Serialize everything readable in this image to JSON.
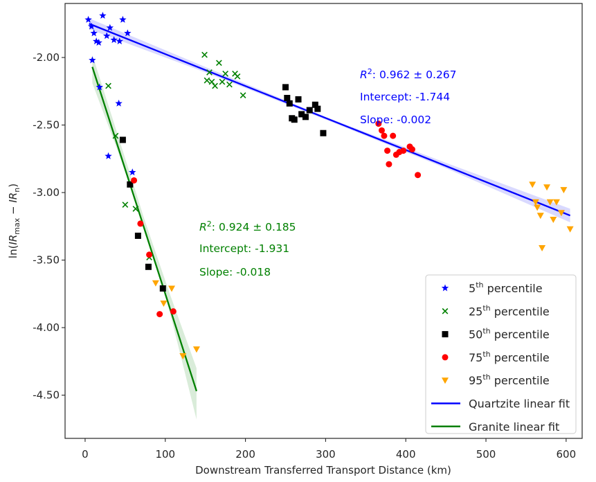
{
  "chart_data": {
    "type": "scatter",
    "xlabel": "Downstream Transferred Transport Distance (km)",
    "ylabel": "ln(IR_max − IR_n)",
    "xlim": [
      -25,
      620
    ],
    "ylim": [
      -4.82,
      -1.6
    ],
    "xticks": [
      0,
      100,
      200,
      300,
      400,
      500,
      600
    ],
    "xtick_labels": [
      "0",
      "100",
      "200",
      "300",
      "400",
      "500",
      "600"
    ],
    "yticks": [
      -2.0,
      -2.5,
      -3.0,
      -3.5,
      -4.0,
      -4.5
    ],
    "ytick_labels": [
      "-2.00",
      "-2.50",
      "-3.00",
      "-3.50",
      "-4.00",
      "-4.50"
    ],
    "grid": false,
    "legend_position": "lower right",
    "series": [
      {
        "name": "5th percentile",
        "marker": "star",
        "color": "#0000ff",
        "points": [
          [
            4,
            -1.72
          ],
          [
            8,
            -1.77
          ],
          [
            11,
            -1.82
          ],
          [
            14,
            -1.88
          ],
          [
            17,
            -1.89
          ],
          [
            22,
            -1.69
          ],
          [
            27,
            -1.84
          ],
          [
            31,
            -1.78
          ],
          [
            36,
            -1.87
          ],
          [
            43,
            -1.88
          ],
          [
            47,
            -1.72
          ],
          [
            53,
            -1.82
          ],
          [
            9,
            -2.02
          ],
          [
            18,
            -2.22
          ],
          [
            42,
            -2.34
          ],
          [
            29,
            -2.73
          ],
          [
            59,
            -2.85
          ]
        ]
      },
      {
        "name": "25th percentile",
        "marker": "x",
        "color": "#008000",
        "points": [
          [
            149,
            -1.98
          ],
          [
            152,
            -2.17
          ],
          [
            155,
            -2.11
          ],
          [
            158,
            -2.18
          ],
          [
            162,
            -2.21
          ],
          [
            167,
            -2.04
          ],
          [
            171,
            -2.18
          ],
          [
            175,
            -2.12
          ],
          [
            180,
            -2.2
          ],
          [
            187,
            -2.12
          ],
          [
            190,
            -2.14
          ],
          [
            197,
            -2.28
          ],
          [
            29,
            -2.21
          ],
          [
            38,
            -2.58
          ],
          [
            50,
            -3.09
          ],
          [
            63,
            -3.12
          ],
          [
            80,
            -3.48
          ]
        ]
      },
      {
        "name": "50th percentile",
        "marker": "square",
        "color": "#000000",
        "points": [
          [
            250,
            -2.22
          ],
          [
            252,
            -2.3
          ],
          [
            255,
            -2.34
          ],
          [
            258,
            -2.45
          ],
          [
            261,
            -2.46
          ],
          [
            266,
            -2.31
          ],
          [
            270,
            -2.42
          ],
          [
            275,
            -2.44
          ],
          [
            280,
            -2.39
          ],
          [
            287,
            -2.35
          ],
          [
            290,
            -2.38
          ],
          [
            297,
            -2.56
          ],
          [
            47,
            -2.61
          ],
          [
            56,
            -2.94
          ],
          [
            66,
            -3.32
          ],
          [
            79,
            -3.55
          ],
          [
            97,
            -3.71
          ]
        ]
      },
      {
        "name": "75th percentile",
        "marker": "circle",
        "color": "#ff0000",
        "points": [
          [
            366,
            -2.49
          ],
          [
            370,
            -2.54
          ],
          [
            373,
            -2.58
          ],
          [
            377,
            -2.69
          ],
          [
            379,
            -2.79
          ],
          [
            384,
            -2.58
          ],
          [
            388,
            -2.72
          ],
          [
            392,
            -2.7
          ],
          [
            397,
            -2.69
          ],
          [
            405,
            -2.66
          ],
          [
            408,
            -2.68
          ],
          [
            415,
            -2.87
          ],
          [
            61,
            -2.91
          ],
          [
            69,
            -3.23
          ],
          [
            80,
            -3.46
          ],
          [
            93,
            -3.9
          ],
          [
            110,
            -3.88
          ]
        ]
      },
      {
        "name": "95th percentile",
        "marker": "triangle-down",
        "color": "#ffa500",
        "points": [
          [
            558,
            -2.94
          ],
          [
            562,
            -3.07
          ],
          [
            564,
            -3.11
          ],
          [
            568,
            -3.17
          ],
          [
            570,
            -3.41
          ],
          [
            576,
            -2.96
          ],
          [
            580,
            -3.07
          ],
          [
            584,
            -3.2
          ],
          [
            588,
            -3.07
          ],
          [
            594,
            -3.15
          ],
          [
            597,
            -2.98
          ],
          [
            605,
            -3.27
          ],
          [
            88,
            -3.67
          ],
          [
            98,
            -3.82
          ],
          [
            108,
            -3.71
          ],
          [
            122,
            -4.21
          ],
          [
            139,
            -4.16
          ]
        ]
      }
    ],
    "fits": [
      {
        "name": "Quartzite linear fit",
        "color": "#0000ff",
        "ci_color": "#8080ff",
        "x": [
          5,
          605
        ],
        "y": [
          -1.75,
          -3.17
        ],
        "ci": [
          [
            5,
            -1.71,
            -1.79
          ],
          [
            150,
            -2.07,
            -2.11
          ],
          [
            300,
            -2.44,
            -2.46
          ],
          [
            450,
            -2.78,
            -2.82
          ],
          [
            605,
            -3.12,
            -3.22
          ]
        ],
        "annotation": {
          "r2_value": "0.962 ± 0.267",
          "intercept": "Intercept: -1.744",
          "slope": "Slope: -0.002"
        }
      },
      {
        "name": "Granite linear fit",
        "color": "#008000",
        "ci_color": "#80c080",
        "x": [
          9,
          139
        ],
        "y": [
          -2.07,
          -4.47
        ],
        "ci": [
          [
            9,
            -1.98,
            -2.19
          ],
          [
            40,
            -2.56,
            -2.68
          ],
          [
            74,
            -3.2,
            -3.26
          ],
          [
            105,
            -3.74,
            -3.87
          ],
          [
            139,
            -4.3,
            -4.68
          ]
        ],
        "annotation": {
          "r2_value": "0.924 ± 0.185",
          "intercept": "Intercept: -1.931",
          "slope": "Slope: -0.018"
        }
      }
    ]
  }
}
